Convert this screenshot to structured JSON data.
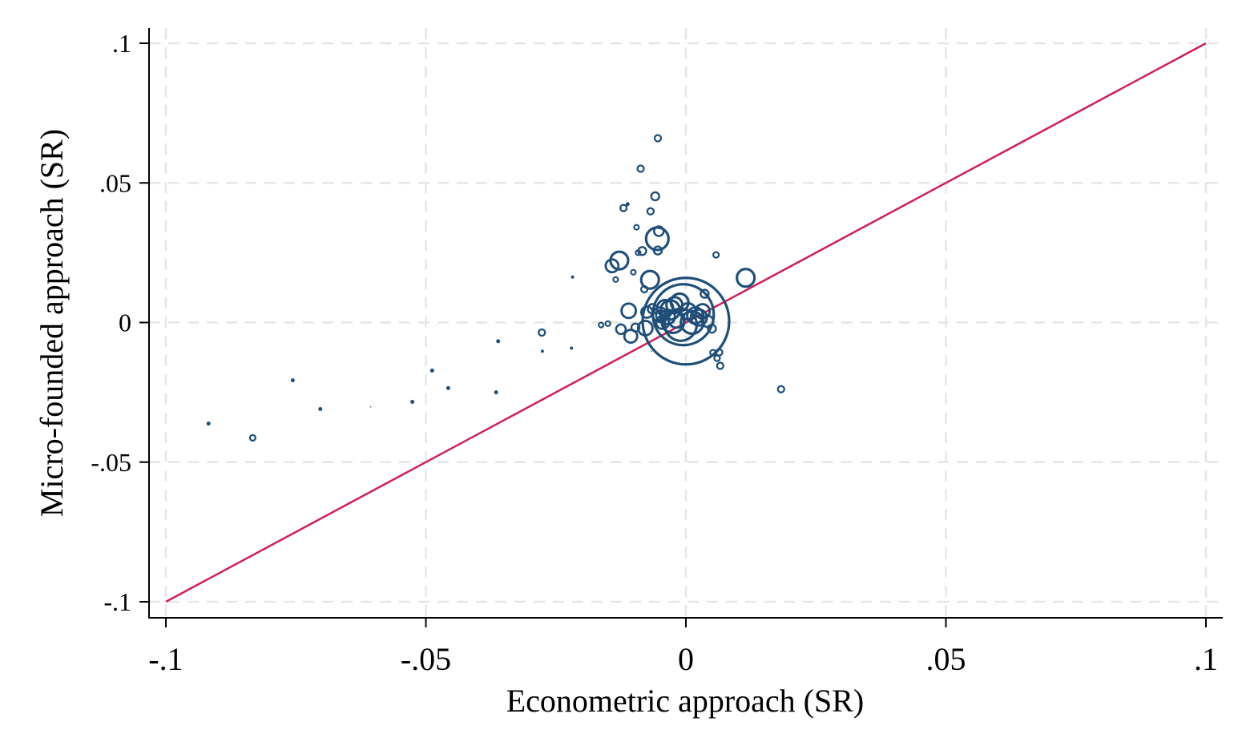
{
  "chart_data": {
    "type": "scatter",
    "xlabel": "Econometric approach (SR)",
    "ylabel": "Micro-founded approach (SR)",
    "xlim": [
      -0.1,
      0.1
    ],
    "ylim": [
      -0.1,
      0.1
    ],
    "x_ticks": [
      -0.1,
      -0.05,
      0,
      0.05,
      0.1
    ],
    "x_tick_labels": [
      "-.1",
      "-.05",
      "0",
      ".05",
      ".1"
    ],
    "y_ticks": [
      -0.1,
      -0.05,
      0,
      0.05,
      0.1
    ],
    "y_tick_labels": [
      "-.1",
      "-.05",
      "0",
      ".05",
      ".1"
    ],
    "grid": true,
    "marker_style": "hollow circles, size = weight",
    "colors": {
      "points": "#1f4e79",
      "reference_line": "#cc1f5a",
      "grid": "#e6e6e6"
    },
    "reference_line": {
      "label": "45-degree line",
      "x": [
        -0.1,
        0.1
      ],
      "y": [
        -0.1,
        0.1
      ]
    },
    "points": [
      {
        "x": -0.0918,
        "y": -0.0362,
        "s": 2.5
      },
      {
        "x": -0.0833,
        "y": -0.0413,
        "s": 3.5
      },
      {
        "x": -0.0756,
        "y": -0.0207,
        "s": 2.5
      },
      {
        "x": -0.0703,
        "y": -0.031,
        "s": 2.5
      },
      {
        "x": -0.0606,
        "y": -0.0302,
        "s": 0.8
      },
      {
        "x": -0.0526,
        "y": -0.0284,
        "s": 2.5
      },
      {
        "x": -0.0488,
        "y": -0.0172,
        "s": 2.5
      },
      {
        "x": -0.0457,
        "y": -0.0235,
        "s": 2.5
      },
      {
        "x": -0.0365,
        "y": -0.025,
        "s": 2.5
      },
      {
        "x": -0.0361,
        "y": -0.0067,
        "s": 2.5
      },
      {
        "x": -0.0277,
        "y": -0.0036,
        "s": 4
      },
      {
        "x": -0.0276,
        "y": -0.0103,
        "s": 2
      },
      {
        "x": -0.022,
        "y": -0.0092,
        "s": 2
      },
      {
        "x": -0.0218,
        "y": 0.0163,
        "s": 2
      },
      {
        "x": -0.0163,
        "y": -0.0009,
        "s": 3
      },
      {
        "x": -0.015,
        "y": -0.0004,
        "s": 3
      },
      {
        "x": -0.0142,
        "y": 0.0203,
        "s": 8
      },
      {
        "x": -0.0135,
        "y": 0.0154,
        "s": 3
      },
      {
        "x": -0.0128,
        "y": 0.0222,
        "s": 11
      },
      {
        "x": -0.0125,
        "y": -0.0024,
        "s": 6
      },
      {
        "x": -0.012,
        "y": 0.041,
        "s": 4
      },
      {
        "x": -0.0112,
        "y": 0.0424,
        "s": 2.5
      },
      {
        "x": -0.011,
        "y": 0.0042,
        "s": 9
      },
      {
        "x": -0.0106,
        "y": -0.0049,
        "s": 8
      },
      {
        "x": -0.0101,
        "y": 0.018,
        "s": 3
      },
      {
        "x": -0.0097,
        "y": -0.0018,
        "s": 5
      },
      {
        "x": -0.0095,
        "y": 0.0341,
        "s": 3
      },
      {
        "x": -0.0092,
        "y": 0.025,
        "s": 3
      },
      {
        "x": -0.0087,
        "y": 0.0551,
        "s": 4
      },
      {
        "x": -0.0084,
        "y": 0.0256,
        "s": 5
      },
      {
        "x": -0.008,
        "y": 0.0119,
        "s": 4
      },
      {
        "x": -0.0078,
        "y": -0.002,
        "s": 9
      },
      {
        "x": -0.0075,
        "y": 0.0037,
        "s": 7
      },
      {
        "x": -0.0069,
        "y": 0.0153,
        "s": 11
      },
      {
        "x": -0.0068,
        "y": 0.0398,
        "s": 4
      },
      {
        "x": -0.0066,
        "y": -0.0103,
        "s": 0.8
      },
      {
        "x": -0.0064,
        "y": 0.0049,
        "s": 6
      },
      {
        "x": -0.0059,
        "y": 0.0452,
        "s": 5
      },
      {
        "x": -0.0055,
        "y": 0.03,
        "s": 14
      },
      {
        "x": -0.0054,
        "y": 0.066,
        "s": 4
      },
      {
        "x": -0.0054,
        "y": 0.0258,
        "s": 5
      },
      {
        "x": -0.0052,
        "y": 0.0327,
        "s": 6
      },
      {
        "x": -0.005,
        "y": 0.0028,
        "s": 9
      },
      {
        "x": -0.0048,
        "y": 0.0025,
        "s": 6
      },
      {
        "x": -0.0045,
        "y": 0.0,
        "s": 8
      },
      {
        "x": -0.004,
        "y": 0.0052,
        "s": 10
      },
      {
        "x": -0.0035,
        "y": 0.002,
        "s": 9
      },
      {
        "x": -0.003,
        "y": 0.0045,
        "s": 12
      },
      {
        "x": -0.0025,
        "y": 0.0003,
        "s": 14
      },
      {
        "x": -0.0022,
        "y": 0.0062,
        "s": 10
      },
      {
        "x": -0.0018,
        "y": 0.001,
        "s": 10
      },
      {
        "x": -0.0012,
        "y": 0.0072,
        "s": 11
      },
      {
        "x": -0.001,
        "y": -0.0008,
        "s": 20
      },
      {
        "x": -0.0005,
        "y": 0.0028,
        "s": 38
      },
      {
        "x": 0.0,
        "y": 0.0005,
        "s": 54
      },
      {
        "x": 0.0004,
        "y": 0.004,
        "s": 10
      },
      {
        "x": 0.0012,
        "y": 0.0,
        "s": 14
      },
      {
        "x": 0.0018,
        "y": 0.0025,
        "s": 10
      },
      {
        "x": 0.0025,
        "y": 0.0018,
        "s": 10
      },
      {
        "x": 0.0032,
        "y": 0.004,
        "s": 9
      },
      {
        "x": 0.0036,
        "y": 0.0103,
        "s": 5
      },
      {
        "x": 0.0042,
        "y": 0.0004,
        "s": 7
      },
      {
        "x": 0.005,
        "y": -0.0022,
        "s": 5
      },
      {
        "x": 0.0052,
        "y": -0.0108,
        "s": 3.5
      },
      {
        "x": 0.0058,
        "y": 0.0242,
        "s": 3.5
      },
      {
        "x": 0.006,
        "y": -0.0128,
        "s": 3.5
      },
      {
        "x": 0.0064,
        "y": -0.0107,
        "s": 4
      },
      {
        "x": 0.0066,
        "y": -0.0155,
        "s": 4
      },
      {
        "x": 0.0115,
        "y": 0.016,
        "s": 11
      },
      {
        "x": 0.0183,
        "y": -0.0239,
        "s": 4
      }
    ]
  }
}
